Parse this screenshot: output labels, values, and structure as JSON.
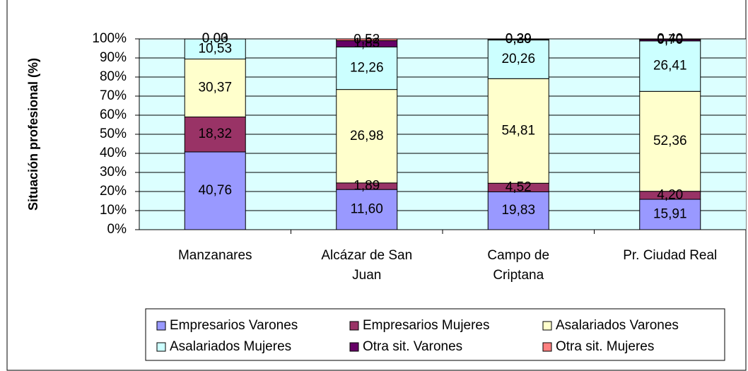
{
  "chart_data": {
    "type": "stacked-percent-bar",
    "ylabel": "Situación profesional (%)",
    "categories": [
      [
        "Manzanares"
      ],
      [
        "Alcázar de San",
        "Juan"
      ],
      [
        "Campo de",
        "Criptana"
      ],
      [
        "Pr. Ciudad Real"
      ]
    ],
    "series": [
      {
        "name": "Empresarios Varones",
        "color": "#9999ff",
        "values": [
          40.76,
          11.6,
          19.83,
          15.91
        ],
        "value_labels": [
          "40,76",
          "11,60",
          "19,83",
          "15,91"
        ]
      },
      {
        "name": "Empresarios Mujeres",
        "color": "#993366",
        "values": [
          18.32,
          1.89,
          4.52,
          4.2
        ],
        "value_labels": [
          "18,32",
          "1,89",
          "4,52",
          "4,20"
        ]
      },
      {
        "name": "Asalariados Varones",
        "color": "#ffffcc",
        "values": [
          30.37,
          26.98,
          54.81,
          52.36
        ],
        "value_labels": [
          "30,37",
          "26,98",
          "54,81",
          "52,36"
        ]
      },
      {
        "name": "Asalariados Mujeres",
        "color": "#ccffff",
        "values": [
          10.53,
          12.26,
          20.26,
          26.41
        ],
        "value_labels": [
          "10,53",
          "12,26",
          "20,26",
          "26,41"
        ]
      },
      {
        "name": "Otra sit. Varones",
        "color": "#660066",
        "values": [
          0.03,
          1.83,
          0.3,
          0.7
        ],
        "value_labels": [
          "0,03",
          "1,83",
          "0,30",
          "0,70"
        ]
      },
      {
        "name": "Otra sit. Mujeres",
        "color": "#ff8080",
        "values": [
          0.0,
          0.52,
          0.29,
          0.4
        ],
        "value_labels": [
          "0,00",
          "0,52",
          "0,29",
          "0,40"
        ]
      }
    ],
    "ylim": [
      0,
      100
    ],
    "yticks": [
      {
        "value": 0,
        "label": "0%"
      },
      {
        "value": 10,
        "label": "10%"
      },
      {
        "value": 20,
        "label": "20%"
      },
      {
        "value": 30,
        "label": "30%"
      },
      {
        "value": 40,
        "label": "40%"
      },
      {
        "value": 50,
        "label": "50%"
      },
      {
        "value": 60,
        "label": "60%"
      },
      {
        "value": 70,
        "label": "70%"
      },
      {
        "value": 80,
        "label": "80%"
      },
      {
        "value": 90,
        "label": "90%"
      },
      {
        "value": 100,
        "label": "100%"
      }
    ],
    "grid": true,
    "plot_background": "#dcffff",
    "legend": "bottom"
  }
}
